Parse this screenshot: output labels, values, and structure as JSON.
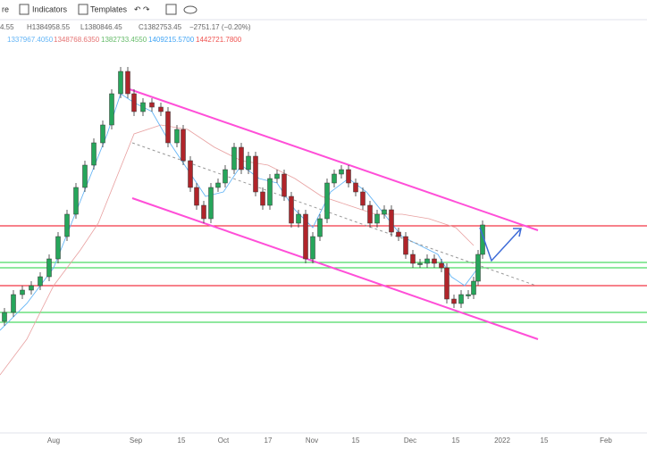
{
  "toolbar": {
    "items": [
      "re",
      "Indicators",
      "Templates"
    ]
  },
  "legend": {
    "ohlc": [
      "4.55",
      "H1384958.55",
      "L1380846.45",
      "C1382753.45",
      "−2751.17 (−0.20%)"
    ],
    "indicators": [
      "1337967.4050",
      "1348768.6350",
      "1382733.4550",
      "1409215.5700",
      "1442721.7800"
    ]
  },
  "time_axis": {
    "labels": [
      "Aug",
      "Sep",
      "15",
      "Oct",
      "17",
      "Nov",
      "15",
      "Dec",
      "15",
      "2022",
      "15",
      "Feb"
    ]
  }
}
